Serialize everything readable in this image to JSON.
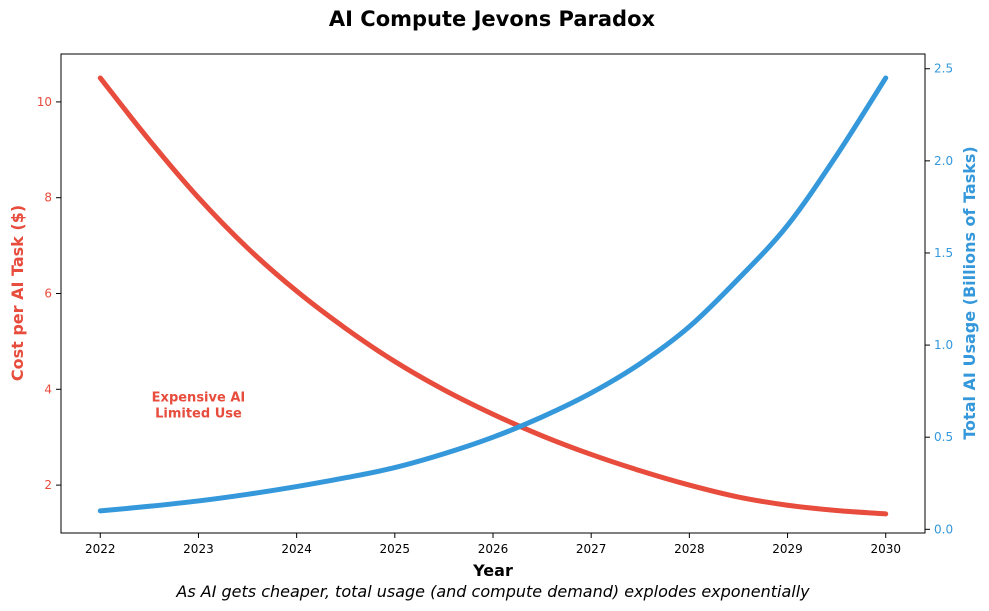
{
  "chart_data": {
    "type": "line",
    "title": "AI Compute Jevons Paradox",
    "xlabel": "Year",
    "ylabel_left": "Cost per AI Task ($)",
    "ylabel_right": "Total AI Usage (Billions of Tasks)",
    "caption": "As AI gets cheaper, total usage (and compute demand) explodes exponentially",
    "annotation": {
      "lines": [
        "Expensive AI",
        "Limited Use"
      ],
      "x": 2023.0,
      "y": 3.7,
      "color": "#e74c3c"
    },
    "x_range": [
      2021.6,
      2030.4
    ],
    "x_ticks": [
      2022,
      2023,
      2024,
      2025,
      2026,
      2027,
      2028,
      2029,
      2030
    ],
    "y_left_range": [
      1.0,
      11.0
    ],
    "y_left_ticks": [
      2,
      4,
      6,
      8,
      10
    ],
    "y_right_range": [
      -0.02,
      2.58
    ],
    "y_right_ticks": [
      0.0,
      0.5,
      1.0,
      1.5,
      2.0,
      2.5
    ],
    "y_right_tick_labels": [
      "0.0",
      "0.5",
      "1.0",
      "1.5",
      "2.0",
      "2.5"
    ],
    "grid": false,
    "series": [
      {
        "axis": "left",
        "color": "#e74c3c",
        "x": [
          2022,
          2022.5,
          2023,
          2023.5,
          2024,
          2024.5,
          2025,
          2025.5,
          2026,
          2026.5,
          2027,
          2027.5,
          2028,
          2028.5,
          2029,
          2029.5,
          2030
        ],
        "values": [
          10.5,
          9.2,
          8.0,
          6.95,
          6.05,
          5.27,
          4.58,
          3.99,
          3.48,
          3.03,
          2.64,
          2.3,
          2.0,
          1.75,
          1.58,
          1.47,
          1.4
        ]
      },
      {
        "axis": "right",
        "color": "#3498db",
        "x": [
          2022,
          2022.5,
          2023,
          2023.5,
          2024,
          2024.5,
          2025,
          2025.5,
          2026,
          2026.5,
          2027,
          2027.5,
          2028,
          2028.5,
          2029,
          2029.5,
          2030
        ],
        "values": [
          0.1,
          0.125,
          0.154,
          0.19,
          0.232,
          0.28,
          0.335,
          0.41,
          0.5,
          0.61,
          0.74,
          0.9,
          1.1,
          1.36,
          1.65,
          2.03,
          2.45
        ]
      }
    ]
  }
}
